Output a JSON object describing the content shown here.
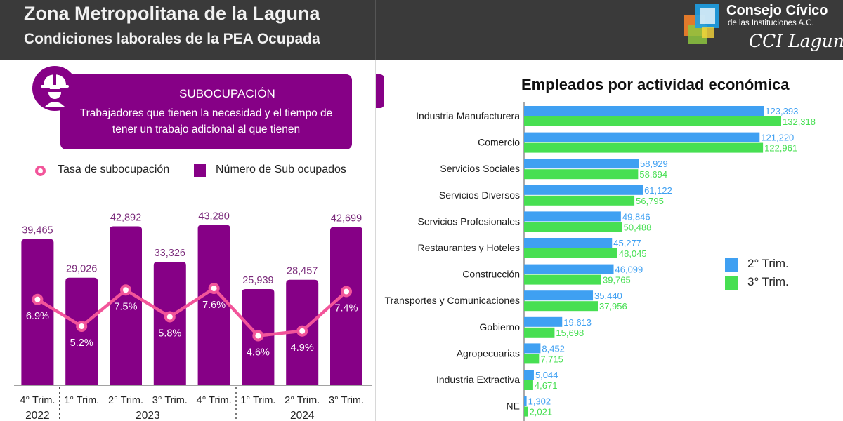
{
  "header": {
    "title": "Zona Metropolitana de la Laguna",
    "subtitle": "Condiciones laborales de la PEA Ocupada"
  },
  "logo": {
    "organization": "Consejo Cívico",
    "sub": "de las Instituciones A.C.",
    "brand": "CCI Laguna"
  },
  "subocupacion": {
    "title": "SUBOCUPACIÓN",
    "description_line1": "Trabajadores que tienen la necesidad y el tiempo de",
    "description_line2": "tener un trabajo adicional al que tienen"
  },
  "legend_left": {
    "rate": "Tasa de subocupación",
    "count": "Número de Sub ocupados"
  },
  "colors": {
    "purple": "#860086",
    "pink": "#f2559a",
    "blue": "#3fa0f2",
    "green": "#47df52"
  },
  "chart_data": [
    {
      "type": "bar",
      "categories": [
        "4° Trim.",
        "1° Trim.",
        "2° Trim.",
        "3° Trim.",
        "4° Trim.",
        "1° Trim.",
        "2° Trim.",
        "3° Trim."
      ],
      "year_groups": [
        {
          "label": "2022",
          "span": 1
        },
        {
          "label": "2023",
          "span": 4
        },
        {
          "label": "2024",
          "span": 3
        }
      ],
      "series": [
        {
          "name": "Número de Sub ocupados",
          "type": "bar",
          "values": [
            39465,
            29026,
            42892,
            33326,
            43280,
            25939,
            28457,
            42699
          ],
          "labels": [
            "39,465",
            "29,026",
            "42,892",
            "33,326",
            "43,280",
            "25,939",
            "28,457",
            "42,699"
          ]
        },
        {
          "name": "Tasa de subocupación",
          "type": "line",
          "values": [
            6.9,
            5.2,
            7.5,
            5.8,
            7.6,
            4.6,
            4.9,
            7.4
          ],
          "labels": [
            "6.9%",
            "5.2%",
            "7.5%",
            "5.8%",
            "7.6%",
            "4.6%",
            "4.9%",
            "7.4%"
          ]
        }
      ],
      "ylim": [
        0,
        50000
      ],
      "rate_lim": [
        0,
        12
      ],
      "legend": "top"
    },
    {
      "type": "bar",
      "orientation": "horizontal",
      "title": "Empleados por actividad económica",
      "categories": [
        "Industria Manufacturera",
        "Comercio",
        "Servicios Sociales",
        "Servicios Diversos",
        "Servicios Profesionales",
        "Restaurantes y Hoteles",
        "Construcción",
        "Transportes y Comunicaciones",
        "Gobierno",
        "Agropecuarias",
        "Industria Extractiva",
        "NE"
      ],
      "series": [
        {
          "name": "2° Trim.",
          "values": [
            123393,
            121220,
            58929,
            61122,
            49846,
            45277,
            46099,
            35440,
            19613,
            8452,
            5044,
            1302
          ],
          "labels": [
            "123,393",
            "121,220",
            "58,929",
            "61,122",
            "49,846",
            "45,277",
            "46,099",
            "35,440",
            "19,613",
            "8,452",
            "5,044",
            "1,302"
          ]
        },
        {
          "name": "3° Trim.",
          "values": [
            132318,
            122961,
            58694,
            56795,
            50488,
            48045,
            39765,
            37956,
            15698,
            7715,
            4671,
            2021
          ],
          "labels": [
            "132,318",
            "122,961",
            "58,694",
            "56,795",
            "50,488",
            "48,045",
            "39,765",
            "37,956",
            "15,698",
            "7,715",
            "4,671",
            "2,021"
          ]
        }
      ],
      "xlim": [
        0,
        140000
      ],
      "legend": "right"
    }
  ]
}
